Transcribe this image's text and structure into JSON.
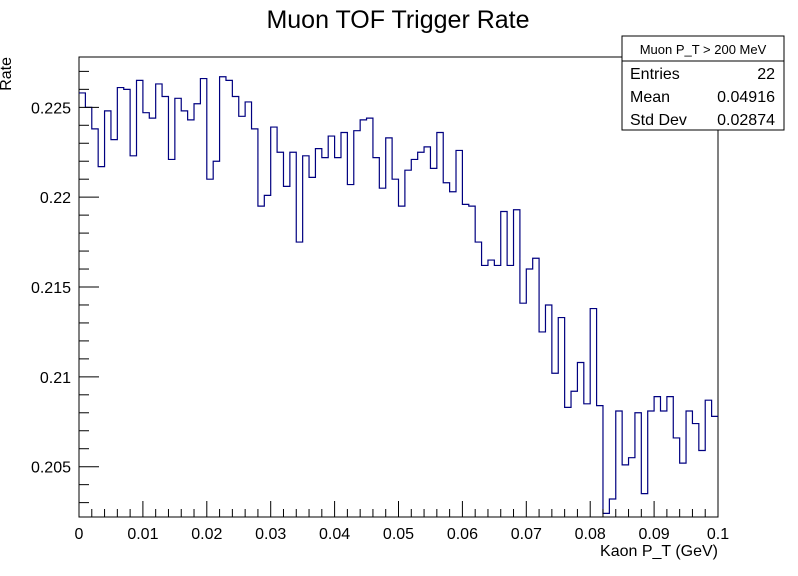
{
  "chart_data": {
    "type": "histogram-line",
    "title": "Muon TOF Trigger Rate",
    "xlabel": "Kaon P_T (GeV)",
    "ylabel": "Rate",
    "xlim": [
      0,
      0.1
    ],
    "ylim": [
      0.2022,
      0.2278
    ],
    "x_ticks": [
      "0",
      "0.01",
      "0.02",
      "0.03",
      "0.04",
      "0.05",
      "0.06",
      "0.07",
      "0.08",
      "0.09",
      "0.1"
    ],
    "x_tick_values": [
      0,
      0.01,
      0.02,
      0.03,
      0.04,
      0.05,
      0.06,
      0.07,
      0.08,
      0.09,
      0.1
    ],
    "y_ticks": [
      "0.205",
      "0.21",
      "0.215",
      "0.22",
      "0.225"
    ],
    "y_tick_values": [
      0.205,
      0.21,
      0.215,
      0.22,
      0.225
    ],
    "line_color": "#000080",
    "bins": 100,
    "values": [
      0.2258,
      0.225,
      0.2238,
      0.2217,
      0.2248,
      0.2232,
      0.2261,
      0.226,
      0.2223,
      0.2265,
      0.2247,
      0.2244,
      0.2263,
      0.2256,
      0.2221,
      0.2255,
      0.2248,
      0.2243,
      0.2252,
      0.2266,
      0.221,
      0.222,
      0.2267,
      0.2265,
      0.2256,
      0.2245,
      0.2253,
      0.2238,
      0.2195,
      0.2201,
      0.2239,
      0.2225,
      0.2206,
      0.2225,
      0.2175,
      0.2223,
      0.2211,
      0.2227,
      0.2222,
      0.2234,
      0.2222,
      0.2236,
      0.2207,
      0.2237,
      0.2243,
      0.2244,
      0.2222,
      0.2205,
      0.2233,
      0.221,
      0.2195,
      0.2215,
      0.2221,
      0.2225,
      0.2228,
      0.2216,
      0.2236,
      0.2208,
      0.2203,
      0.2226,
      0.2196,
      0.2195,
      0.2175,
      0.2162,
      0.2165,
      0.2162,
      0.2192,
      0.2162,
      0.2193,
      0.2141,
      0.216,
      0.2166,
      0.2125,
      0.214,
      0.2102,
      0.2133,
      0.2083,
      0.2092,
      0.2108,
      0.2085,
      0.2138,
      0.2084,
      0.2024,
      0.2032,
      0.2081,
      0.2051,
      0.2055,
      0.208,
      0.2035,
      0.2081,
      0.2089,
      0.2081,
      0.2089,
      0.2066,
      0.2052,
      0.2081,
      0.2074,
      0.2059,
      0.2087,
      0.2078
    ]
  },
  "stats_box": {
    "title": "Muon P_T > 200 MeV",
    "rows": [
      {
        "name": "Entries",
        "value": "22"
      },
      {
        "name": "Mean",
        "value": "0.04916"
      },
      {
        "name": "Std Dev",
        "value": "0.02874"
      }
    ]
  }
}
